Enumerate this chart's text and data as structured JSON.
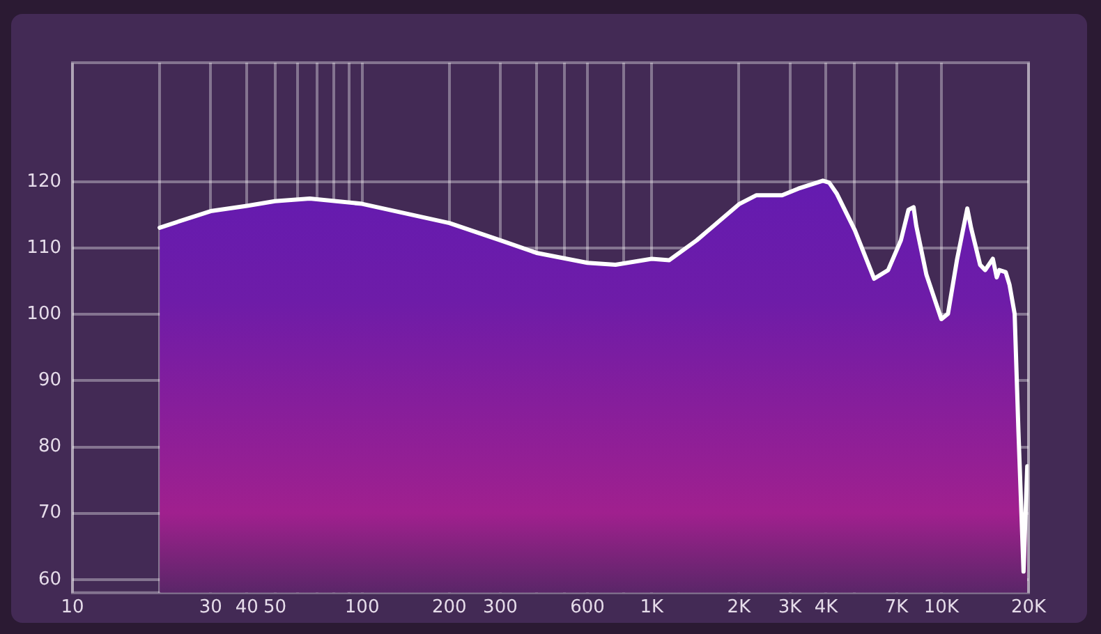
{
  "chart_data": {
    "type": "area",
    "xlim": [
      10,
      20000
    ],
    "ylim": [
      58,
      138
    ],
    "log": "x",
    "grid": true,
    "legend": false,
    "marker": "none",
    "line_style": "solid",
    "xticks": [
      10,
      {
        "value": 20,
        "label": null
      },
      30,
      40,
      50,
      {
        "value": 60,
        "label": null
      },
      {
        "value": 70,
        "label": null
      },
      {
        "value": 80,
        "label": null
      },
      {
        "value": 90,
        "label": null
      },
      100,
      200,
      300,
      {
        "value": 400,
        "label": null
      },
      {
        "value": 500,
        "label": null
      },
      600,
      {
        "value": 800,
        "label": null
      },
      {
        "value": 1000,
        "label": "1K"
      },
      {
        "value": 2000,
        "label": "2K"
      },
      {
        "value": 3000,
        "label": "3K"
      },
      {
        "value": 4000,
        "label": "4K"
      },
      {
        "value": 5000,
        "label": null
      },
      {
        "value": 7000,
        "label": "7K"
      },
      {
        "value": 10000,
        "label": "10K"
      },
      {
        "value": 20000,
        "label": "20K"
      }
    ],
    "yticks": [
      60,
      70,
      80,
      90,
      100,
      110,
      120
    ],
    "series": [
      {
        "color": "#ffffff",
        "x": [
          20,
          30,
          40,
          50,
          66,
          100,
          200,
          300,
          400,
          600,
          750,
          1000,
          1150,
          1430,
          2010,
          2300,
          2820,
          3210,
          3900,
          4100,
          4360,
          5030,
          5860,
          6550,
          7250,
          7700,
          8020,
          8190,
          8880,
          10000,
          10540,
          11320,
          12290,
          12680,
          13610,
          14170,
          15060,
          15530,
          15850,
          16680,
          17190,
          17910,
          18460,
          19220,
          19800
        ],
        "values": [
          113.1,
          115.6,
          116.4,
          117.1,
          117.5,
          116.7,
          113.8,
          111.2,
          109.3,
          107.8,
          107.5,
          108.4,
          108.2,
          111.2,
          116.7,
          118,
          118,
          119,
          120.2,
          119.9,
          118.2,
          112.7,
          105.4,
          106.7,
          111.2,
          115.8,
          116.2,
          113.4,
          106,
          99.3,
          100.1,
          108.2,
          116,
          113,
          107.5,
          106.7,
          108.4,
          105.6,
          106.7,
          106.4,
          104.5,
          100.1,
          82.3,
          61.2,
          77.1
        ]
      }
    ]
  }
}
